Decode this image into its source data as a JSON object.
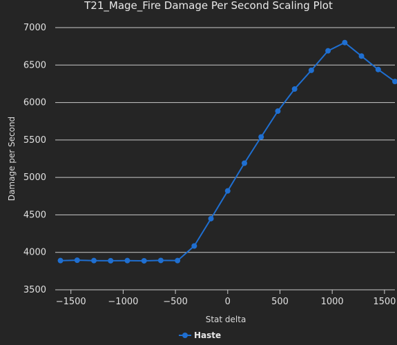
{
  "chart_data": {
    "type": "line",
    "title": "T21_Mage_Fire Damage Per Second Scaling Plot",
    "xlabel": "Stat delta",
    "ylabel": "Damage per Second",
    "xlim": [
      -1650,
      1600
    ],
    "ylim": [
      3500,
      7000
    ],
    "x_ticks": [
      -1500,
      -1000,
      -500,
      0,
      500,
      1000,
      1500
    ],
    "x_tick_labels": [
      "−1500",
      "−1000",
      "−500",
      "0",
      "500",
      "1000",
      "1500"
    ],
    "y_ticks": [
      3500,
      4000,
      4500,
      5000,
      5500,
      6000,
      6500,
      7000
    ],
    "y_tick_labels": [
      "3500",
      "4000",
      "4500",
      "5000",
      "5500",
      "6000",
      "6500",
      "7000"
    ],
    "grid": true,
    "legend": "bottom-center",
    "series": [
      {
        "name": "Haste",
        "color": "#1f6fd1",
        "x": [
          -1600,
          -1440,
          -1280,
          -1120,
          -960,
          -800,
          -640,
          -480,
          -320,
          -160,
          0,
          160,
          320,
          480,
          640,
          800,
          960,
          1120,
          1280,
          1440,
          1600
        ],
        "values": [
          3890,
          3895,
          3890,
          3888,
          3890,
          3887,
          3892,
          3890,
          4085,
          4450,
          4820,
          5190,
          5540,
          5885,
          6180,
          6430,
          6690,
          6800,
          6620,
          6440,
          6280
        ]
      }
    ]
  }
}
